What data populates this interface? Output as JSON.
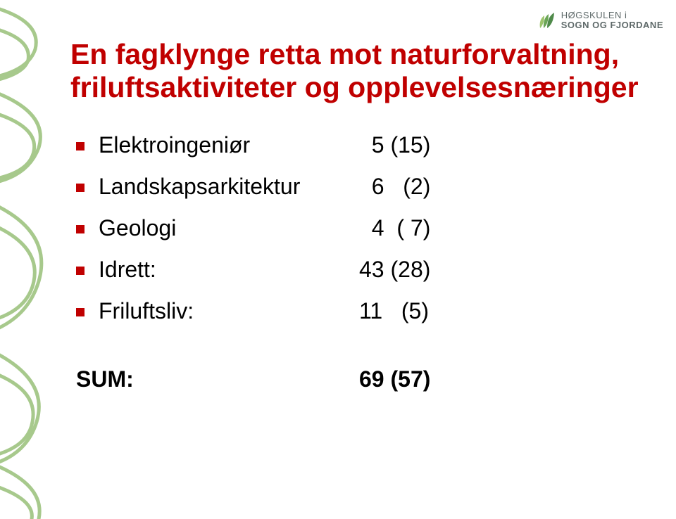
{
  "logo": {
    "line1": "HØGSKULEN i",
    "line2": "SOGN OG FJORDANE",
    "leaf_colors": [
      "#9cc46c",
      "#6aa556",
      "#4f8a4a"
    ]
  },
  "decor": {
    "stroke": "#a7c98c",
    "stroke_width": 5
  },
  "title": "En fagklynge retta mot naturforvaltning, friluftsaktiviteter og opplevelsesnæringer",
  "title_color": "#c00000",
  "bullet_color": "#c00000",
  "items": [
    {
      "label": "Elektroingeniør",
      "value": "  5 (15)"
    },
    {
      "label": "Landskapsarkitektur",
      "value": "  6   (2)"
    },
    {
      "label": "Geologi",
      "value": "  4  ( 7)"
    },
    {
      "label": "Idrett:",
      "value": "43 (28)"
    },
    {
      "label": "Friluftsliv:",
      "value": "11   (5)"
    }
  ],
  "sum": {
    "label": "SUM:",
    "value": "69 (57)"
  }
}
